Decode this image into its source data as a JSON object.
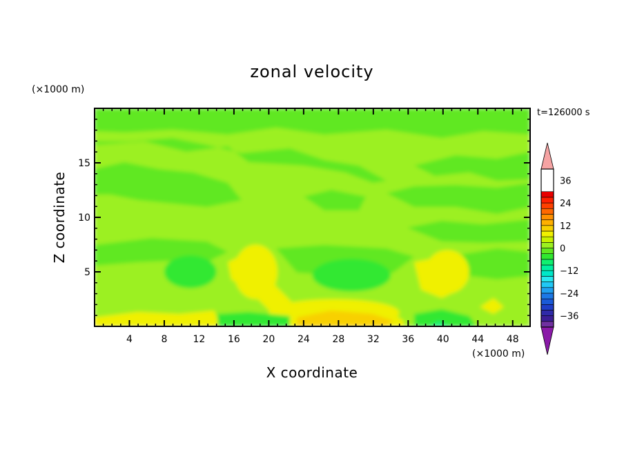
{
  "chart_data": {
    "type": "heatmap",
    "title": "zonal velocity",
    "xlabel": "X coordinate",
    "ylabel": "Z coordinate",
    "x_unit": "(×1000 m)",
    "y_unit": "(×1000 m)",
    "time_label": "t=126000 s",
    "xlim": [
      0,
      50
    ],
    "ylim": [
      0,
      20
    ],
    "x_ticks": [
      4,
      8,
      12,
      16,
      20,
      24,
      28,
      32,
      36,
      40,
      44,
      48
    ],
    "y_ticks": [
      5,
      10,
      15
    ],
    "colorbar": {
      "levels": [
        -42,
        -39,
        -36,
        -33,
        -30,
        -27,
        -24,
        -21,
        -18,
        -15,
        -12,
        -9,
        -6,
        -3,
        0,
        3,
        6,
        9,
        12,
        15,
        18,
        21,
        24,
        27,
        30,
        33,
        36,
        39,
        42
      ],
      "colors": [
        "#7030a0",
        "#3c1e96",
        "#2f2aa8",
        "#1f3ec8",
        "#1a5ad8",
        "#1c78e6",
        "#20a0f0",
        "#20c8f6",
        "#28e8f0",
        "#00e8c8",
        "#00f0a0",
        "#10f070",
        "#30e830",
        "#60e820",
        "#9cf020",
        "#c8f000",
        "#f0f000",
        "#f8d000",
        "#ffb000",
        "#ff9000",
        "#ff6800",
        "#ff4000",
        "#ff2000",
        "#e80000",
        "#f5a3a3"
      ],
      "tick_labels": [
        "36",
        "24",
        "12",
        "0",
        "−12",
        "−24",
        "−36"
      ],
      "tick_values": [
        36,
        24,
        12,
        0,
        -12,
        -24,
        -36
      ],
      "under_color": "#8a1aa8",
      "over_color": "#f5a3a3"
    },
    "field_regions": [
      {
        "value": 1,
        "shape": "background"
      },
      {
        "value": -2,
        "shape": "bands",
        "description": "upper layers"
      },
      {
        "value": -6,
        "x": [
          8,
          14
        ],
        "z": [
          3.5,
          6.5
        ]
      },
      {
        "value": -6,
        "x": [
          25,
          34
        ],
        "z": [
          3.2,
          6.2
        ]
      },
      {
        "value": 6,
        "x": [
          16,
          21
        ],
        "z": [
          2.5,
          7.5
        ]
      },
      {
        "value": 6,
        "x": [
          38,
          43
        ],
        "z": [
          3.0,
          7.0
        ]
      },
      {
        "value": 8,
        "x": [
          20,
          35
        ],
        "z": [
          0.0,
          2.5
        ]
      },
      {
        "value": -8,
        "x": [
          38,
          42
        ],
        "z": [
          0.0,
          1.0
        ]
      }
    ]
  }
}
